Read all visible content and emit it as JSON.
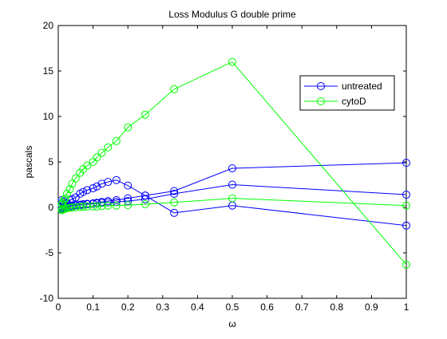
{
  "chart_data": {
    "type": "line",
    "title": "Loss Modulus G double prime",
    "xlabel": "ω",
    "ylabel": "pascals",
    "xlim": [
      0,
      1
    ],
    "ylim": [
      -10,
      20
    ],
    "xticks": [
      0,
      0.1,
      0.2,
      0.3,
      0.4,
      0.5,
      0.6,
      0.7,
      0.8,
      0.9,
      1
    ],
    "yticks": [
      -10,
      -5,
      0,
      5,
      10,
      15,
      20
    ],
    "xtick_labels": [
      "0",
      "0.1",
      "0.2",
      "0.3",
      "0.4",
      "0.5",
      "0.6",
      "0.7",
      "0.8",
      "0.9",
      "1"
    ],
    "ytick_labels": [
      "-10",
      "-5",
      "0",
      "5",
      "10",
      "15",
      "20"
    ],
    "grid": false,
    "legend_position": "top-right",
    "legend": [
      {
        "label": "untreated",
        "color": "#0000ff"
      },
      {
        "label": "cytoD",
        "color": "#00ff00"
      }
    ],
    "series": [
      {
        "group": "untreated",
        "color": "#0000ff",
        "x": [
          0.01,
          0.0125,
          0.0167,
          0.02,
          0.025,
          0.0333,
          0.04,
          0.05,
          0.0625,
          0.0714,
          0.0833,
          0.1,
          0.111,
          0.125,
          0.143,
          0.167,
          0.2,
          0.25,
          0.333,
          0.5,
          1
        ],
        "y": [
          0.8,
          0.6,
          0.4,
          0.2,
          0.5,
          0.8,
          0.9,
          1.1,
          1.5,
          1.7,
          1.9,
          2.1,
          2.3,
          2.6,
          2.8,
          3.0,
          2.4,
          1.3,
          -0.6,
          0.2,
          -2.0
        ]
      },
      {
        "group": "untreated",
        "color": "#0000ff",
        "x": [
          0.01,
          0.0125,
          0.0167,
          0.02,
          0.025,
          0.0333,
          0.04,
          0.05,
          0.0625,
          0.0714,
          0.0833,
          0.1,
          0.111,
          0.125,
          0.143,
          0.167,
          0.2,
          0.25,
          0.333,
          0.5,
          1
        ],
        "y": [
          0.1,
          -0.1,
          0.0,
          0.1,
          0.1,
          0.15,
          0.2,
          0.25,
          0.3,
          0.35,
          0.4,
          0.45,
          0.5,
          0.6,
          0.7,
          0.8,
          1.0,
          1.3,
          1.8,
          4.3,
          4.9
        ]
      },
      {
        "group": "untreated",
        "color": "#0000ff",
        "x": [
          0.01,
          0.0125,
          0.0167,
          0.02,
          0.025,
          0.0333,
          0.04,
          0.05,
          0.0625,
          0.0714,
          0.0833,
          0.1,
          0.111,
          0.125,
          0.143,
          0.167,
          0.2,
          0.25,
          0.333,
          0.5,
          1
        ],
        "y": [
          -0.2,
          -0.2,
          -0.1,
          0.0,
          0.05,
          0.1,
          0.15,
          0.2,
          0.25,
          0.3,
          0.35,
          0.4,
          0.45,
          0.5,
          0.55,
          0.6,
          0.7,
          0.9,
          1.5,
          2.5,
          1.4
        ]
      },
      {
        "group": "cytoD",
        "color": "#00ff00",
        "x": [
          0.01,
          0.0125,
          0.0167,
          0.02,
          0.025,
          0.0333,
          0.04,
          0.05,
          0.0625,
          0.0714,
          0.0833,
          0.1,
          0.111,
          0.125,
          0.143,
          0.167,
          0.2,
          0.25,
          0.333,
          0.5,
          1
        ],
        "y": [
          0.3,
          0.5,
          0.8,
          1.0,
          1.5,
          2.0,
          2.6,
          3.2,
          3.8,
          4.2,
          4.6,
          5.0,
          5.5,
          6.0,
          6.6,
          7.3,
          8.8,
          10.2,
          13.0,
          16.0,
          -6.3
        ]
      },
      {
        "group": "cytoD",
        "color": "#00ff00",
        "x": [
          0.01,
          0.0125,
          0.0167,
          0.02,
          0.025,
          0.0333,
          0.04,
          0.05,
          0.0625,
          0.0714,
          0.0833,
          0.1,
          0.111,
          0.125,
          0.143,
          0.167,
          0.2,
          0.25,
          0.333,
          0.5,
          1
        ],
        "y": [
          -0.3,
          -0.2,
          -0.2,
          -0.1,
          -0.1,
          -0.05,
          0.0,
          0.0,
          0.05,
          0.05,
          0.1,
          0.1,
          0.1,
          0.15,
          0.2,
          0.2,
          0.25,
          0.35,
          0.55,
          1.0,
          0.2
        ]
      }
    ]
  }
}
